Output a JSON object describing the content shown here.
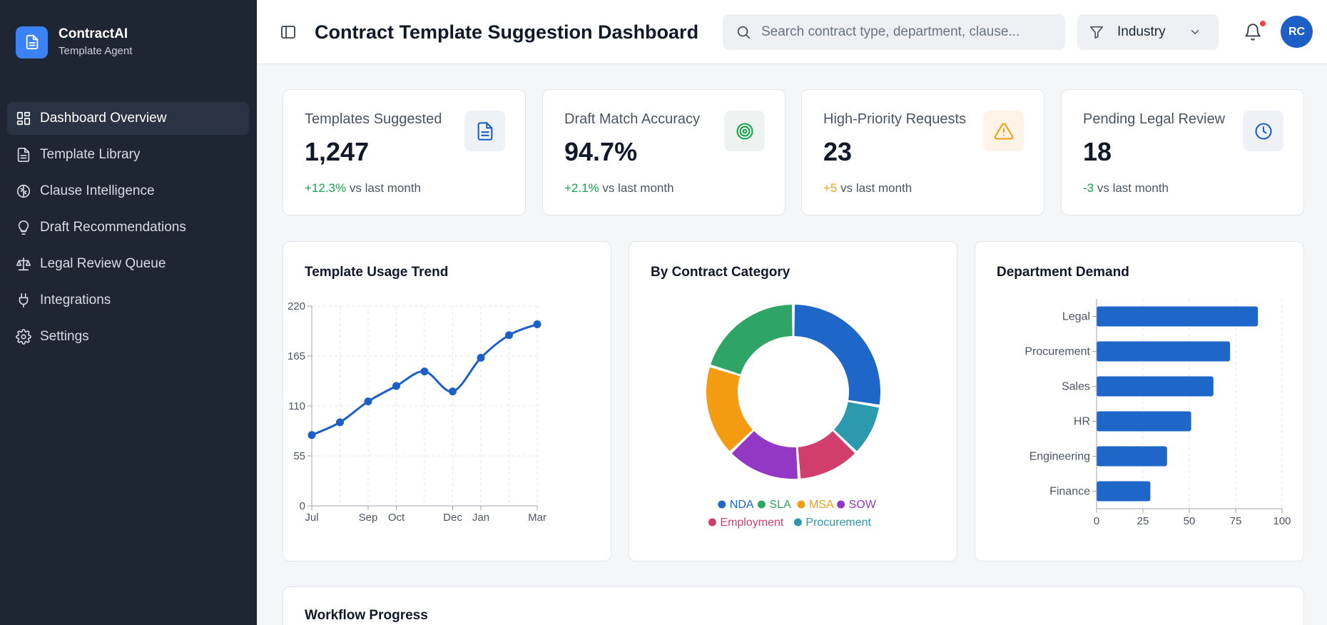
{
  "brand": {
    "name": "ContractAI",
    "subtitle": "Template Agent"
  },
  "nav": [
    {
      "label": "Dashboard Overview",
      "icon": "grid-icon",
      "active": true
    },
    {
      "label": "Template Library",
      "icon": "file-icon"
    },
    {
      "label": "Clause Intelligence",
      "icon": "brain-icon"
    },
    {
      "label": "Draft Recommendations",
      "icon": "lightbulb-icon"
    },
    {
      "label": "Legal Review Queue",
      "icon": "scale-icon"
    },
    {
      "label": "Integrations",
      "icon": "plug-icon"
    },
    {
      "label": "Settings",
      "icon": "gear-icon"
    }
  ],
  "header": {
    "title": "Contract Template Suggestion Dashboard",
    "search_placeholder": "Search contract type, department, clause...",
    "filter_label": "Industry",
    "avatar_initials": "RC"
  },
  "stats": [
    {
      "label": "Templates Suggested",
      "value": "1,247",
      "delta": "+12.3%",
      "delta_text": " vs last month",
      "delta_color": "#16a34a",
      "icon": "document-icon",
      "icon_color": "#1d5fc4",
      "icon_bg": "#eef2f7"
    },
    {
      "label": "Draft Match Accuracy",
      "value": "94.7%",
      "delta": "+2.1%",
      "delta_text": " vs last month",
      "delta_color": "#16a34a",
      "icon": "target-icon",
      "icon_color": "#16a34a",
      "icon_bg": "#eef2f1"
    },
    {
      "label": "High-Priority Requests",
      "value": "23",
      "delta": "+5",
      "delta_text": " vs last month",
      "delta_color": "#f59e0b",
      "icon": "warning-icon",
      "icon_color": "#f59e0b",
      "icon_bg": "#fdf4e7"
    },
    {
      "label": "Pending Legal Review",
      "value": "18",
      "delta": "-3",
      "delta_text": " vs last month",
      "delta_color": "#16a34a",
      "icon": "clock-icon",
      "icon_color": "#1d5fc4",
      "icon_bg": "#eef2f7"
    }
  ],
  "panels": {
    "trend_title": "Template Usage Trend",
    "category_title": "By Contract Category",
    "department_title": "Department Demand",
    "workflow_title": "Workflow Progress"
  },
  "chart_data": [
    {
      "type": "line",
      "title": "Template Usage Trend",
      "x": [
        "Jul",
        "Aug",
        "Sep",
        "Oct",
        "Nov",
        "Dec",
        "Jan",
        "Feb",
        "Mar"
      ],
      "x_tick_labels": [
        "Jul",
        "",
        "Sep",
        "Oct",
        "",
        "Dec",
        "Jan",
        "",
        "Mar"
      ],
      "values": [
        78,
        92,
        115,
        132,
        148,
        126,
        163,
        188,
        200
      ],
      "y_ticks": [
        0,
        55,
        110,
        165,
        220
      ],
      "ylim": [
        0,
        220
      ],
      "grid": true,
      "color": "#1d5fc4"
    },
    {
      "type": "pie",
      "title": "By Contract Category",
      "donut": true,
      "legend": "bottom",
      "slices": [
        {
          "label": "NDA",
          "value": 26,
          "color": "#1f66c9"
        },
        {
          "label": "Procurement",
          "value": 9,
          "color": "#2b9aae"
        },
        {
          "label": "Employment",
          "value": 11,
          "color": "#d13e6e"
        },
        {
          "label": "SOW",
          "value": 13,
          "color": "#9238c4"
        },
        {
          "label": "MSA",
          "value": 16,
          "color": "#f39c12"
        },
        {
          "label": "SLA",
          "value": 19,
          "color": "#2ea566"
        }
      ],
      "legend_order": [
        "NDA",
        "SLA",
        "MSA",
        "SOW",
        "Employment",
        "Procurement"
      ]
    },
    {
      "type": "bar",
      "orientation": "horizontal",
      "title": "Department Demand",
      "categories": [
        "Legal",
        "Procurement",
        "Sales",
        "HR",
        "Engineering",
        "Finance"
      ],
      "values": [
        87,
        72,
        63,
        51,
        38,
        29
      ],
      "x_ticks": [
        0,
        25,
        50,
        75,
        100
      ],
      "xlim": [
        0,
        100
      ],
      "grid": true,
      "color": "#1f66c9"
    }
  ]
}
